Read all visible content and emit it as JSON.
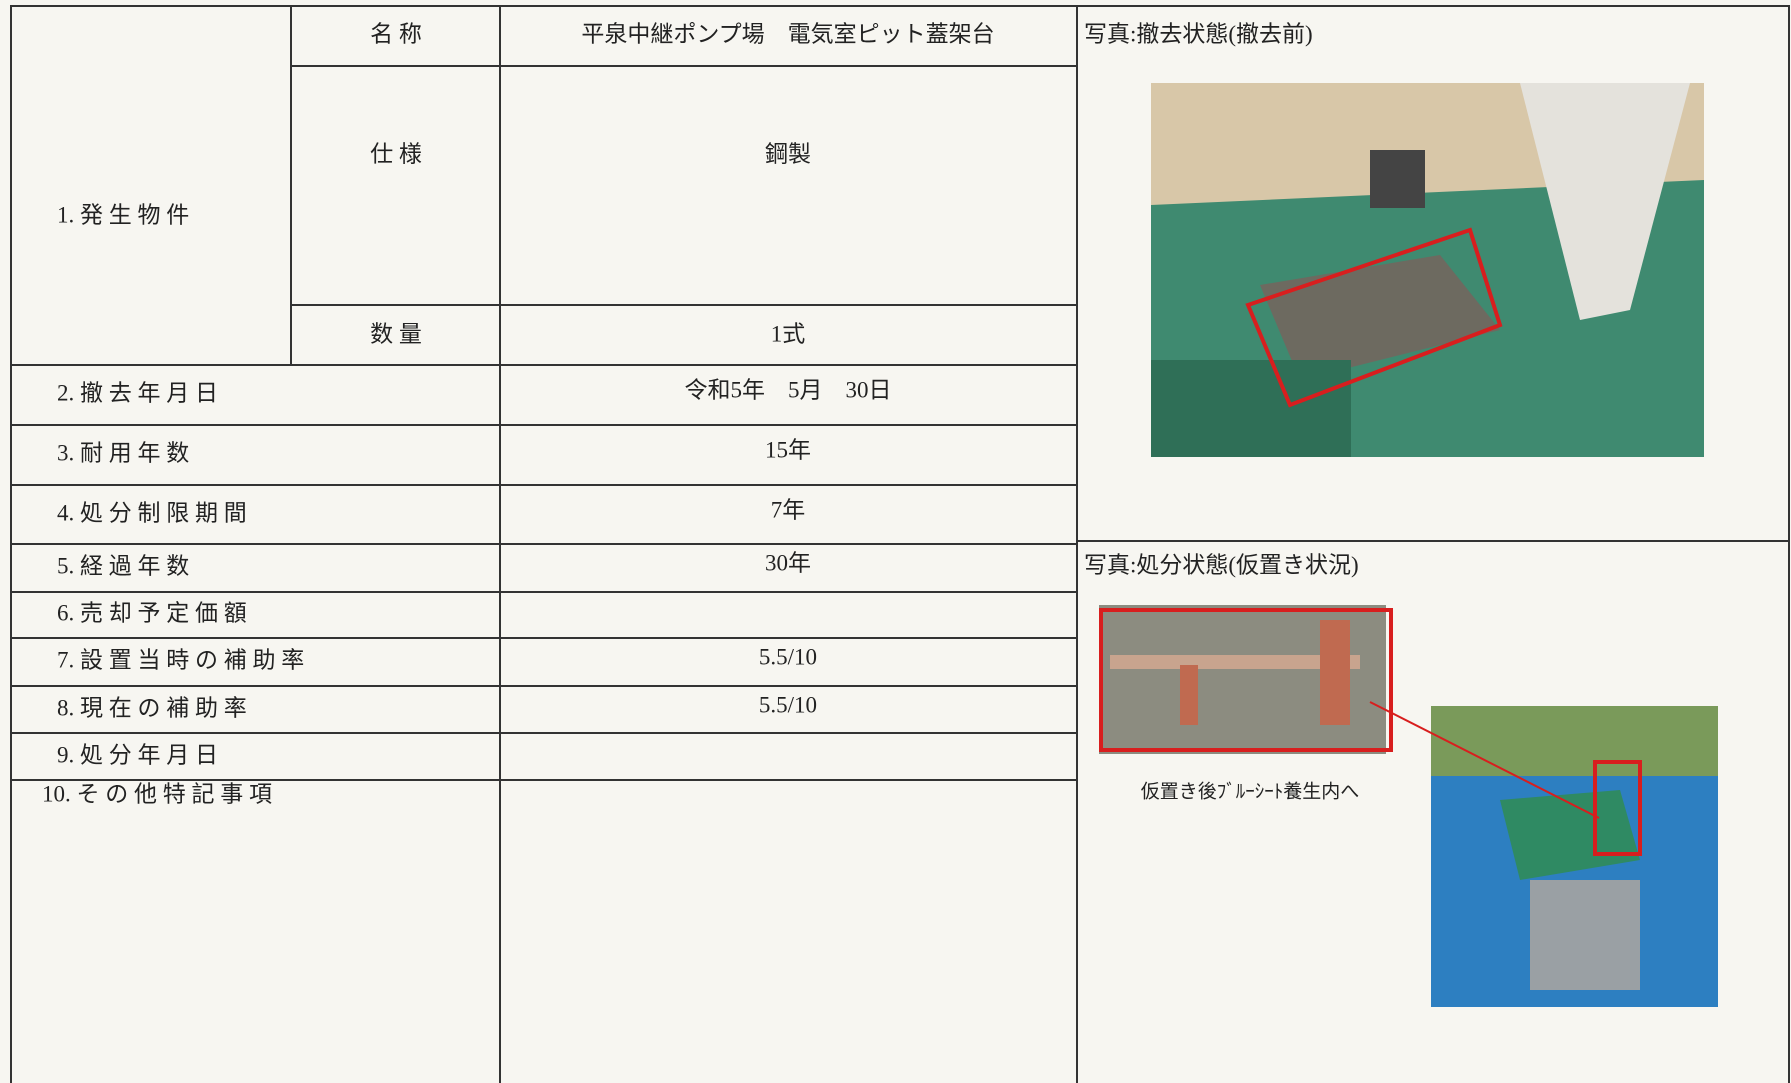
{
  "items": [
    {
      "label": "1. 発 生 物 件",
      "sub": [
        {
          "label": "名 称",
          "value": "平泉中継ポンプ場　電気室ピット蓋架台"
        },
        {
          "label": "仕 様",
          "value": "鋼製"
        },
        {
          "label": "数 量",
          "value": "1式"
        }
      ]
    },
    {
      "label": "2. 撤 去 年 月 日",
      "value": "令和5年　5月　30日"
    },
    {
      "label": "3. 耐 用 年 数",
      "value": "15年"
    },
    {
      "label": "4. 処 分 制 限 期 間",
      "value": "7年"
    },
    {
      "label": "5. 経 過 年 数",
      "value": "30年"
    },
    {
      "label": "6. 売 却 予 定 価 額"
    },
    {
      "label": "7. 設 置 当 時 の 補 助 率",
      "value": "5.5/10"
    },
    {
      "label": "8. 現 在 の 補 助 率",
      "value": "5.5/10"
    },
    {
      "label": "9. 処 分 年 月 日"
    },
    {
      "label": "10. そ の 他 特 記 事 項"
    }
  ],
  "photos": [
    {
      "title": "写真:撤去状態(撤去前)"
    },
    {
      "title": "写真:処分状態(仮置き状況)",
      "caption": "仮置き後ﾌﾞﾙｰｼｰﾄ養生内へ"
    }
  ]
}
